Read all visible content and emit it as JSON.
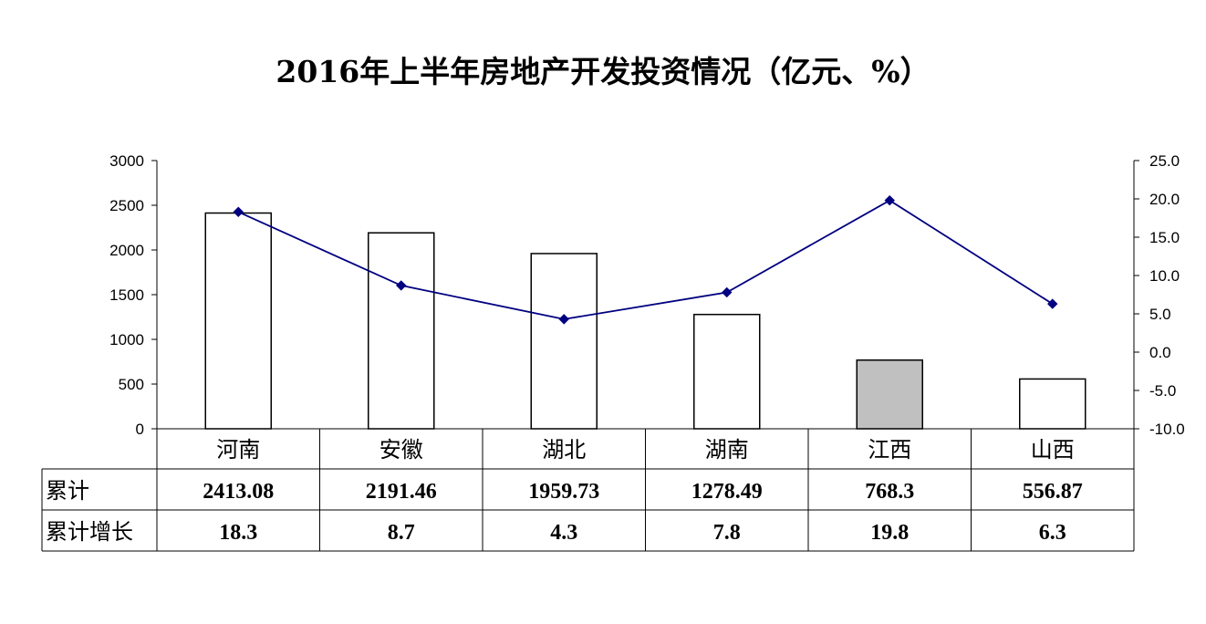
{
  "chart_data": {
    "type": "bar",
    "title": "2016年上半年房地产开发投资情况（亿元、%）",
    "categories": [
      "河南",
      "安徽",
      "湖北",
      "湖南",
      "江西",
      "山西"
    ],
    "highlight_category": "江西",
    "colors": {
      "bar": "#ffffff",
      "highlight_bar": "#c0c0c0",
      "line": "#000080",
      "marker": "#000080"
    },
    "series": [
      {
        "name": "累计",
        "type": "bar",
        "axis": "left",
        "values": [
          2413.08,
          2191.46,
          1959.73,
          1278.49,
          768.3,
          556.87
        ]
      },
      {
        "name": "累计增长",
        "type": "line",
        "axis": "right",
        "values": [
          18.3,
          8.7,
          4.3,
          7.8,
          19.8,
          6.3
        ]
      }
    ],
    "y_left": {
      "min": 0,
      "max": 3000,
      "step": 500,
      "tick_labels": [
        "0",
        "500",
        "1000",
        "1500",
        "2000",
        "2500",
        "3000"
      ]
    },
    "y_right": {
      "min": -10,
      "max": 25,
      "step": 5,
      "tick_labels": [
        "-10.0",
        "-5.0",
        "0.0",
        "5.0",
        "10.0",
        "15.0",
        "20.0",
        "25.0"
      ]
    },
    "grid": false,
    "table": {
      "row_headers": [
        "累计",
        "累计增长"
      ],
      "rows": [
        [
          "2413.08",
          "2191.46",
          "1959.73",
          "1278.49",
          "768.3",
          "556.87"
        ],
        [
          "18.3",
          "8.7",
          "4.3",
          "7.8",
          "19.8",
          "6.3"
        ]
      ]
    }
  }
}
